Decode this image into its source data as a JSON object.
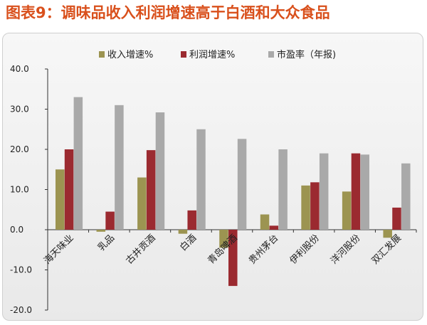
{
  "title": "图表9：调味品收入利润增速高于白酒和大众食品",
  "chart_data": {
    "type": "bar",
    "categories": [
      "海天味业",
      "乳品",
      "古井贡酒",
      "白酒",
      "青岛啤酒",
      "贵州茅台",
      "伊利股份",
      "洋河股份",
      "双汇发展"
    ],
    "series": [
      {
        "name": "收入增速%",
        "color": "#9c9451",
        "values": [
          15.0,
          -0.5,
          13.0,
          -1.0,
          -4.5,
          3.8,
          11.0,
          9.5,
          -2.0
        ]
      },
      {
        "name": "利润增速%",
        "color": "#9b2a30",
        "values": [
          20.0,
          4.5,
          19.8,
          4.8,
          -14.0,
          1.0,
          11.8,
          19.0,
          5.5
        ]
      },
      {
        "name": "市盈率（年报)",
        "color": "#a9a9a9",
        "values": [
          33.0,
          31.0,
          29.2,
          25.0,
          22.6,
          20.0,
          19.0,
          18.7,
          16.5
        ]
      }
    ],
    "yticks": [
      "40.0",
      "30.0",
      "20.0",
      "10.0",
      "0.0",
      "-10.0",
      "-20.0"
    ],
    "ylim": [
      -20,
      40
    ],
    "legend_position": "top-center",
    "grid": false
  }
}
